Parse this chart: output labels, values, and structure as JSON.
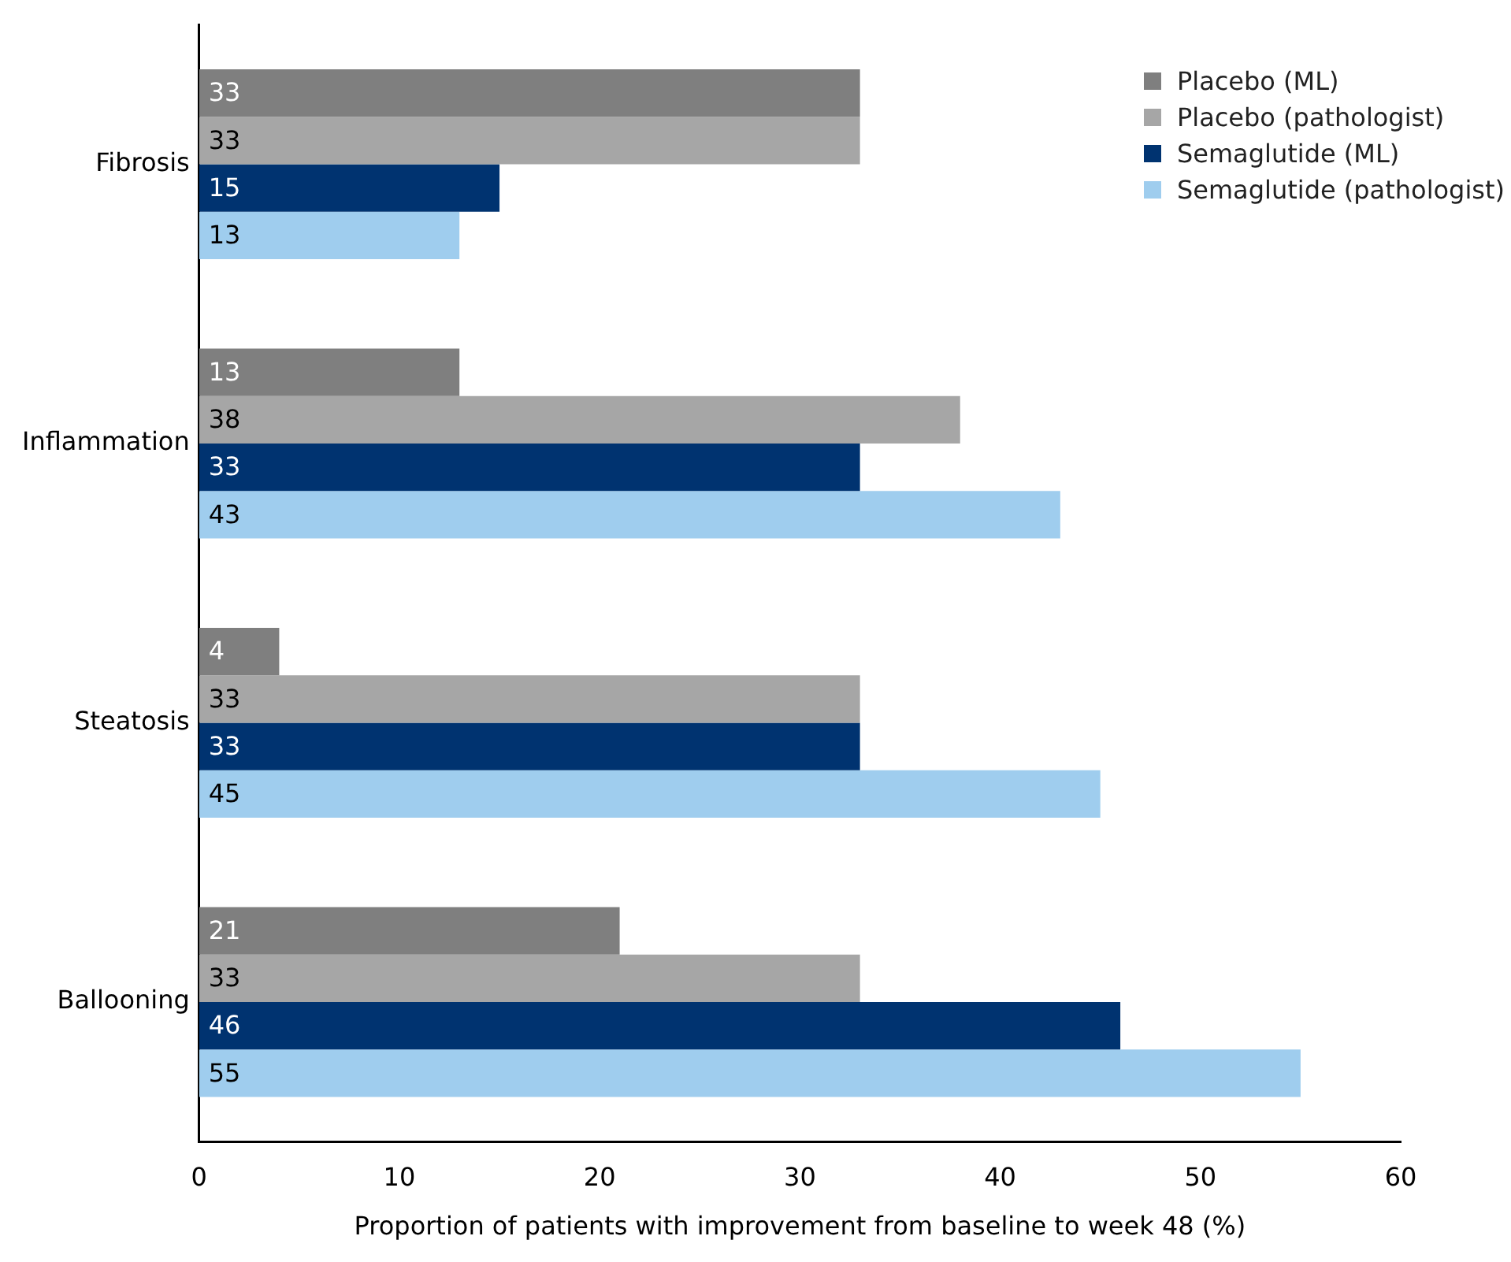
{
  "chart_data": {
    "type": "bar",
    "orientation": "horizontal",
    "xlabel": "Proportion of patients with improvement from baseline to week 48 (%)",
    "categories": [
      "Fibrosis",
      "Inflammation",
      "Steatosis",
      "Ballooning"
    ],
    "series": [
      {
        "name": "Placebo (ML)",
        "color": "#7f7f7f",
        "values": [
          33,
          13,
          4,
          21
        ]
      },
      {
        "name": "Placebo (pathologist)",
        "color": "#a6a6a6",
        "values": [
          33,
          38,
          33,
          33
        ]
      },
      {
        "name": "Semaglutide (ML)",
        "color": "#003370",
        "values": [
          15,
          33,
          33,
          46
        ]
      },
      {
        "name": "Semaglutide (pathologist)",
        "color": "#9fcdee",
        "values": [
          13,
          43,
          45,
          55
        ]
      }
    ],
    "data_labels": true,
    "xlim": [
      0,
      60
    ],
    "xticks": [
      0,
      10,
      20,
      30,
      40,
      50,
      60
    ],
    "grid": false,
    "legend": "top right"
  }
}
